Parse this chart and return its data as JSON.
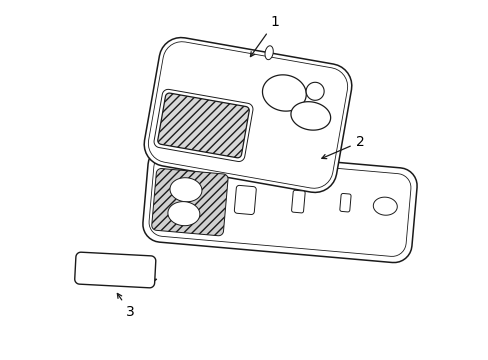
{
  "background": "#ffffff",
  "line_color": "#1a1a1a",
  "label_color": "#000000",
  "lw": 1.0,
  "fig_w": 4.89,
  "fig_h": 3.6,
  "dpi": 100
}
